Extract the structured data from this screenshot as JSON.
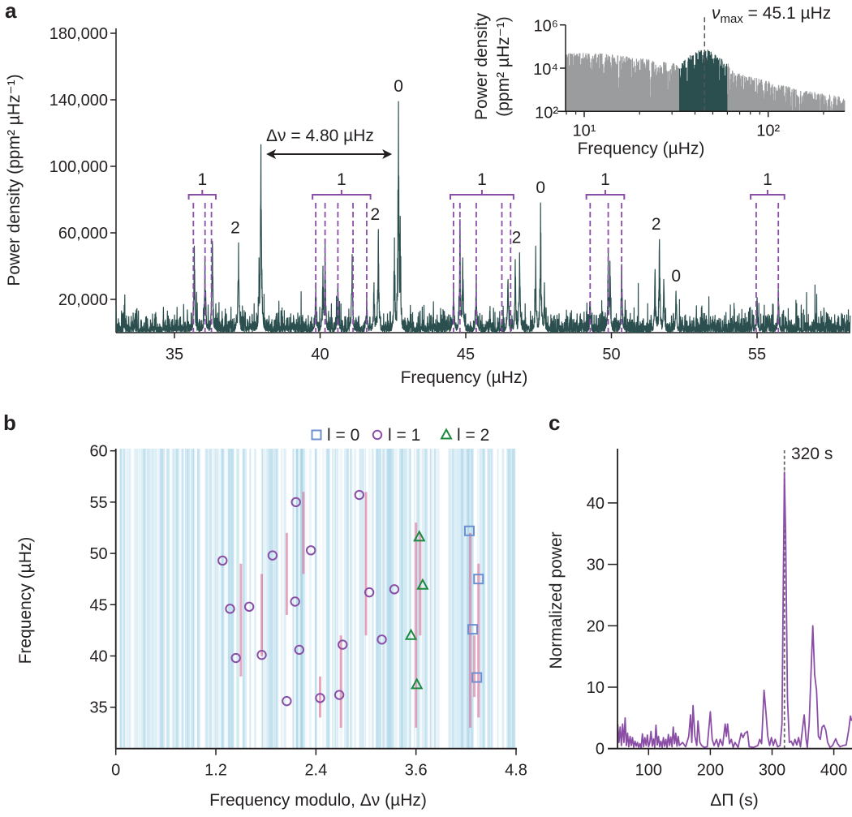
{
  "panel_labels": {
    "a": "a",
    "b": "b",
    "c": "c"
  },
  "colors": {
    "spectrum": "#2b4f4e",
    "inset_background": "#9b9c9e",
    "l1_marker": "#8b4ea6",
    "l0_marker": "#6c8fd2",
    "l2_marker": "#1d8a3e",
    "panel_c_line": "#8b4ea6",
    "axis": "#231f20"
  },
  "chart_data": [
    {
      "id": "a",
      "type": "line",
      "xlabel": "Frequency (µHz)",
      "ylabel": "Power density (ppm² µHz⁻¹)",
      "xlim": [
        33.0,
        58.2
      ],
      "ylim": [
        0,
        180000
      ],
      "xticks": [
        {
          "v": 35,
          "label": "35"
        },
        {
          "v": 40,
          "label": "40"
        },
        {
          "v": 45,
          "label": "45"
        },
        {
          "v": 50,
          "label": "50"
        },
        {
          "v": 55,
          "label": "55"
        }
      ],
      "yticks": [
        {
          "v": 20000,
          "label": "20,000"
        },
        {
          "v": 60000,
          "label": "60,000"
        },
        {
          "v": 100000,
          "label": "100,000"
        },
        {
          "v": 140000,
          "label": "140,000"
        },
        {
          "v": 180000,
          "label": "180,000"
        }
      ],
      "background_level": 4000,
      "peaks": [
        {
          "f": 35.68,
          "p": 52000
        },
        {
          "f": 36.05,
          "p": 46000
        },
        {
          "f": 36.3,
          "p": 55000
        },
        {
          "f": 37.2,
          "p": 54000
        },
        {
          "f": 37.97,
          "p": 113000
        },
        {
          "f": 37.9,
          "p": 45000
        },
        {
          "f": 39.85,
          "p": 30000
        },
        {
          "f": 40.17,
          "p": 53000
        },
        {
          "f": 40.1,
          "p": 40000
        },
        {
          "f": 40.61,
          "p": 29000
        },
        {
          "f": 41.1,
          "p": 47000
        },
        {
          "f": 41.6,
          "p": 22000
        },
        {
          "f": 41.85,
          "p": 30000
        },
        {
          "f": 42.0,
          "p": 62000
        },
        {
          "f": 42.55,
          "p": 57000
        },
        {
          "f": 42.69,
          "p": 139000
        },
        {
          "f": 42.75,
          "p": 70000
        },
        {
          "f": 44.58,
          "p": 30000
        },
        {
          "f": 44.8,
          "p": 68000
        },
        {
          "f": 44.9,
          "p": 45000
        },
        {
          "f": 45.36,
          "p": 33000
        },
        {
          "f": 46.45,
          "p": 32000
        },
        {
          "f": 46.7,
          "p": 44000
        },
        {
          "f": 46.85,
          "p": 48000
        },
        {
          "f": 47.4,
          "p": 52000
        },
        {
          "f": 47.57,
          "p": 78000
        },
        {
          "f": 47.7,
          "p": 30000
        },
        {
          "f": 49.27,
          "p": 18000
        },
        {
          "f": 49.89,
          "p": 50000
        },
        {
          "f": 49.95,
          "p": 43000
        },
        {
          "f": 50.35,
          "p": 41000
        },
        {
          "f": 51.5,
          "p": 38000
        },
        {
          "f": 51.65,
          "p": 56000
        },
        {
          "f": 51.8,
          "p": 32000
        },
        {
          "f": 52.22,
          "p": 25000
        },
        {
          "f": 55.0,
          "p": 21000
        },
        {
          "f": 55.73,
          "p": 26000
        }
      ],
      "l1_groups": [
        {
          "label": "1",
          "range": [
            35.49,
            36.42
          ],
          "modes": [
            35.65,
            36.05,
            36.27
          ]
        },
        {
          "label": "1",
          "range": [
            39.74,
            41.73
          ],
          "modes": [
            39.85,
            40.17,
            40.61,
            41.13,
            41.6
          ]
        },
        {
          "label": "1",
          "range": [
            44.47,
            46.64
          ],
          "modes": [
            44.58,
            44.8,
            45.36,
            46.24,
            46.54
          ]
        },
        {
          "label": "1",
          "range": [
            49.14,
            50.44
          ],
          "modes": [
            49.27,
            49.89,
            50.35
          ]
        },
        {
          "label": "1",
          "range": [
            54.78,
            55.94
          ],
          "modes": [
            54.97,
            55.73
          ]
        }
      ],
      "mode_labels": [
        {
          "label": "2",
          "f": 37.2,
          "p": 54000
        },
        {
          "label": "2",
          "f": 42.0,
          "p": 62000
        },
        {
          "label": "0",
          "f": 42.69,
          "p": 139000
        },
        {
          "label": "2",
          "f": 46.85,
          "p": 48000
        },
        {
          "label": "0",
          "f": 47.57,
          "p": 78000
        },
        {
          "label": "2",
          "f": 51.65,
          "p": 56000
        },
        {
          "label": "0",
          "f": 52.22,
          "p": 25000
        }
      ],
      "large_separation": {
        "label": "Δν = 4.80 µHz",
        "from": 38.15,
        "to": 42.47
      }
    },
    {
      "id": "a-inset",
      "type": "area",
      "xlabel": "Frequency (µHz)",
      "ylabel_line1": "Power density",
      "ylabel_line2": "(ppm² µHz⁻¹)",
      "xscale": "log",
      "yscale": "log",
      "xlim": [
        7.9,
        261
      ],
      "ylim": [
        100,
        1000000
      ],
      "xticks": [
        {
          "v": 10,
          "label": "10¹"
        },
        {
          "v": 100,
          "label": "10²"
        }
      ],
      "yticks": [
        {
          "v": 100,
          "label": "10²"
        },
        {
          "v": 10000,
          "label": "10⁴"
        },
        {
          "v": 1000000,
          "label": "10⁶"
        }
      ],
      "envelope": [
        [
          7.9,
          50000
        ],
        [
          12,
          50000
        ],
        [
          20,
          30000
        ],
        [
          33,
          15000
        ],
        [
          40,
          60000
        ],
        [
          46,
          80000
        ],
        [
          59.7,
          20000
        ],
        [
          65,
          7000
        ],
        [
          100,
          2500
        ],
        [
          160,
          900
        ],
        [
          261,
          500
        ]
      ],
      "highlight_range": [
        33,
        59.7
      ],
      "numax": {
        "value": 45.1,
        "symbol": "ν",
        "subscript": "max",
        "text": " = 45.1 µHz"
      }
    },
    {
      "id": "b",
      "type": "scatter",
      "xlabel": "Frequency modulo, Δν (µHz)",
      "ylabel": "Frequency (µHz)",
      "xlim": [
        0,
        4.8
      ],
      "ylim": [
        31.0,
        60.2
      ],
      "xticks": [
        {
          "v": 0,
          "label": "0"
        },
        {
          "v": 1.2,
          "label": "1.2"
        },
        {
          "v": 2.4,
          "label": "2.4"
        },
        {
          "v": 3.6,
          "label": "3.6"
        },
        {
          "v": 4.8,
          "label": "4.8"
        }
      ],
      "yticks": [
        {
          "v": 35,
          "label": "35"
        },
        {
          "v": 40,
          "label": "40"
        },
        {
          "v": 45,
          "label": "45"
        },
        {
          "v": 50,
          "label": "50"
        },
        {
          "v": 55,
          "label": "55"
        },
        {
          "v": 60,
          "label": "60"
        }
      ],
      "legend": [
        {
          "label": "l = 0",
          "marker": "square"
        },
        {
          "label": "l = 1",
          "marker": "circle"
        },
        {
          "label": "l = 2",
          "marker": "triangle"
        }
      ],
      "legend_position": "top",
      "series": [
        {
          "name": "l = 0",
          "marker": "square",
          "points": [
            [
              4.24,
              52.2
            ],
            [
              4.35,
              47.5
            ],
            [
              4.28,
              42.6
            ],
            [
              4.33,
              37.9
            ]
          ]
        },
        {
          "name": "l = 1",
          "marker": "circle",
          "points": [
            [
              1.28,
              49.3
            ],
            [
              1.37,
              44.6
            ],
            [
              1.6,
              44.8
            ],
            [
              1.44,
              39.8
            ],
            [
              1.75,
              40.1
            ],
            [
              1.88,
              49.8
            ],
            [
              2.16,
              55.0
            ],
            [
              2.15,
              45.3
            ],
            [
              2.34,
              50.3
            ],
            [
              2.2,
              40.6
            ],
            [
              2.05,
              35.6
            ],
            [
              2.45,
              35.9
            ],
            [
              2.68,
              36.2
            ],
            [
              2.72,
              41.1
            ],
            [
              2.92,
              55.7
            ],
            [
              3.04,
              46.2
            ],
            [
              3.34,
              46.5
            ],
            [
              3.19,
              41.6
            ]
          ]
        },
        {
          "name": "l = 2",
          "marker": "triangle",
          "points": [
            [
              3.64,
              51.6
            ],
            [
              3.68,
              46.9
            ],
            [
              3.54,
              42.0
            ],
            [
              3.61,
              37.2
            ]
          ]
        }
      ]
    },
    {
      "id": "c",
      "type": "line",
      "xlabel": "ΔΠ (s)",
      "ylabel": "Normalized power",
      "xlim": [
        50,
        429
      ],
      "ylim": [
        0,
        49
      ],
      "xticks": [
        {
          "v": 100,
          "label": "100"
        },
        {
          "v": 200,
          "label": "200"
        },
        {
          "v": 300,
          "label": "300"
        },
        {
          "v": 400,
          "label": "400"
        }
      ],
      "yticks": [
        {
          "v": 0,
          "label": "0"
        },
        {
          "v": 10,
          "label": "10"
        },
        {
          "v": 20,
          "label": "20"
        },
        {
          "v": 30,
          "label": "30"
        },
        {
          "v": 40,
          "label": "40"
        }
      ],
      "marker_line": {
        "value": 320,
        "label": "320 s"
      },
      "points": [
        [
          50,
          4
        ],
        [
          52,
          1
        ],
        [
          54,
          3.5
        ],
        [
          56,
          0.5
        ],
        [
          58,
          4
        ],
        [
          60,
          1
        ],
        [
          62,
          5
        ],
        [
          64,
          0.5
        ],
        [
          66,
          2.5
        ],
        [
          68,
          0.3
        ],
        [
          70,
          2
        ],
        [
          72,
          0.5
        ],
        [
          74,
          1.8
        ],
        [
          76,
          0.2
        ],
        [
          78,
          1.2
        ],
        [
          80,
          0.4
        ],
        [
          82,
          1
        ],
        [
          84,
          0.2
        ],
        [
          86,
          0.8
        ],
        [
          88,
          0.1
        ],
        [
          90,
          2.4
        ],
        [
          92,
          0.3
        ],
        [
          94,
          1.8
        ],
        [
          96,
          0.5
        ],
        [
          98,
          2.2
        ],
        [
          100,
          0.3
        ],
        [
          102,
          1
        ],
        [
          104,
          2.8
        ],
        [
          106,
          0.4
        ],
        [
          108,
          1.6
        ],
        [
          110,
          0.2
        ],
        [
          112,
          3.8
        ],
        [
          114,
          0.6
        ],
        [
          116,
          2
        ],
        [
          118,
          0.3
        ],
        [
          120,
          1.2
        ],
        [
          122,
          0.2
        ],
        [
          124,
          1.8
        ],
        [
          126,
          0.4
        ],
        [
          128,
          1.5
        ],
        [
          130,
          0.2
        ],
        [
          132,
          2.3
        ],
        [
          134,
          0.5
        ],
        [
          136,
          1.9
        ],
        [
          138,
          0.3
        ],
        [
          140,
          3.5
        ],
        [
          142,
          0.8
        ],
        [
          144,
          2.5
        ],
        [
          146,
          0.4
        ],
        [
          148,
          2
        ],
        [
          150,
          0.5
        ],
        [
          155,
          1
        ],
        [
          160,
          0.3
        ],
        [
          165,
          2
        ],
        [
          168,
          5.5
        ],
        [
          170,
          1
        ],
        [
          172,
          7
        ],
        [
          175,
          2
        ],
        [
          178,
          0.5
        ],
        [
          180,
          4.5
        ],
        [
          183,
          1
        ],
        [
          186,
          0.5
        ],
        [
          190,
          0.2
        ],
        [
          195,
          0.3
        ],
        [
          200,
          6
        ],
        [
          203,
          1.5
        ],
        [
          206,
          0.5
        ],
        [
          210,
          1.5
        ],
        [
          213,
          0.3
        ],
        [
          216,
          1.5
        ],
        [
          220,
          0.5
        ],
        [
          224,
          4
        ],
        [
          226,
          2
        ],
        [
          228,
          4
        ],
        [
          231,
          0.8
        ],
        [
          234,
          1.5
        ],
        [
          237,
          0.2
        ],
        [
          240,
          1
        ],
        [
          245,
          0.2
        ],
        [
          250,
          2.5
        ],
        [
          253,
          1.8
        ],
        [
          256,
          2.5
        ],
        [
          260,
          2.8
        ],
        [
          263,
          0.3
        ],
        [
          270,
          0.2
        ],
        [
          277,
          0.5
        ],
        [
          280,
          1.5
        ],
        [
          283,
          0.8
        ],
        [
          287,
          9.5
        ],
        [
          290,
          6
        ],
        [
          293,
          2
        ],
        [
          296,
          0.5
        ],
        [
          299,
          1.8
        ],
        [
          302,
          0.5
        ],
        [
          305,
          1.5
        ],
        [
          309,
          0.3
        ],
        [
          313,
          0.5
        ],
        [
          316,
          4
        ],
        [
          318,
          25
        ],
        [
          320,
          45
        ],
        [
          322,
          35
        ],
        [
          325,
          8
        ],
        [
          328,
          1
        ],
        [
          331,
          1.2
        ],
        [
          334,
          0.5
        ],
        [
          337,
          1.5
        ],
        [
          340,
          0.6
        ],
        [
          343,
          1.8
        ],
        [
          346,
          0.3
        ],
        [
          349,
          3
        ],
        [
          352,
          5.5
        ],
        [
          355,
          1.5
        ],
        [
          357,
          0.2
        ],
        [
          360,
          4
        ],
        [
          363,
          12
        ],
        [
          366,
          20
        ],
        [
          369,
          12
        ],
        [
          372,
          9.5
        ],
        [
          375,
          2
        ],
        [
          378,
          1.5
        ],
        [
          381,
          3.5
        ],
        [
          384,
          3.8
        ],
        [
          387,
          3
        ],
        [
          390,
          1
        ],
        [
          394,
          0.2
        ],
        [
          398,
          0.5
        ],
        [
          403,
          1.6
        ],
        [
          406,
          0.8
        ],
        [
          410,
          0.3
        ],
        [
          415,
          0.5
        ],
        [
          420,
          0.6
        ],
        [
          424,
          3
        ],
        [
          427,
          5.3
        ],
        [
          429,
          4.5
        ]
      ]
    }
  ]
}
